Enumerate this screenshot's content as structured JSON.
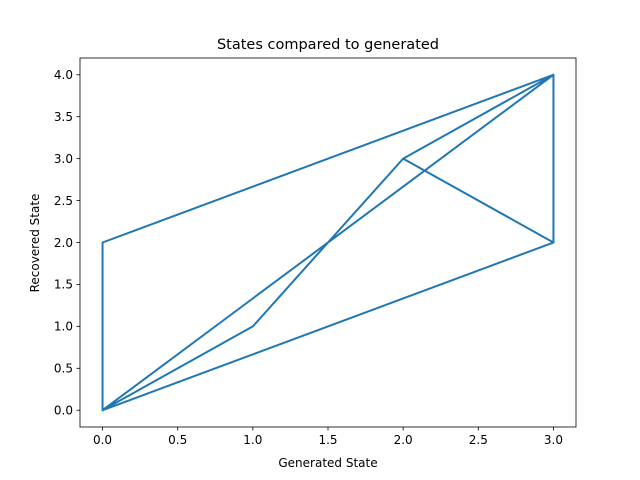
{
  "chart_data": {
    "type": "line",
    "title": "States compared to generated",
    "xlabel": "Generated State",
    "ylabel": "Recovered State",
    "xlim": [
      -0.15,
      3.15
    ],
    "ylim": [
      -0.2,
      4.2
    ],
    "xticks": [
      0.0,
      0.5,
      1.0,
      1.5,
      2.0,
      2.5,
      3.0
    ],
    "xtick_labels": [
      "0.0",
      "0.5",
      "1.0",
      "1.5",
      "2.0",
      "2.5",
      "3.0"
    ],
    "yticks": [
      0.0,
      0.5,
      1.0,
      1.5,
      2.0,
      2.5,
      3.0,
      3.5,
      4.0
    ],
    "ytick_labels": [
      "0.0",
      "0.5",
      "1.0",
      "1.5",
      "2.0",
      "2.5",
      "3.0",
      "3.5",
      "4.0"
    ],
    "grid": false,
    "series": [
      {
        "color": "#1f77b4",
        "x": [
          0,
          0,
          3,
          3,
          0,
          3,
          2,
          3,
          2,
          1,
          0,
          1,
          2,
          3,
          0,
          3
        ],
        "y": [
          0,
          2,
          4,
          2,
          0,
          4,
          3,
          2,
          3,
          1,
          0,
          1,
          3,
          4,
          0,
          2
        ]
      }
    ]
  }
}
